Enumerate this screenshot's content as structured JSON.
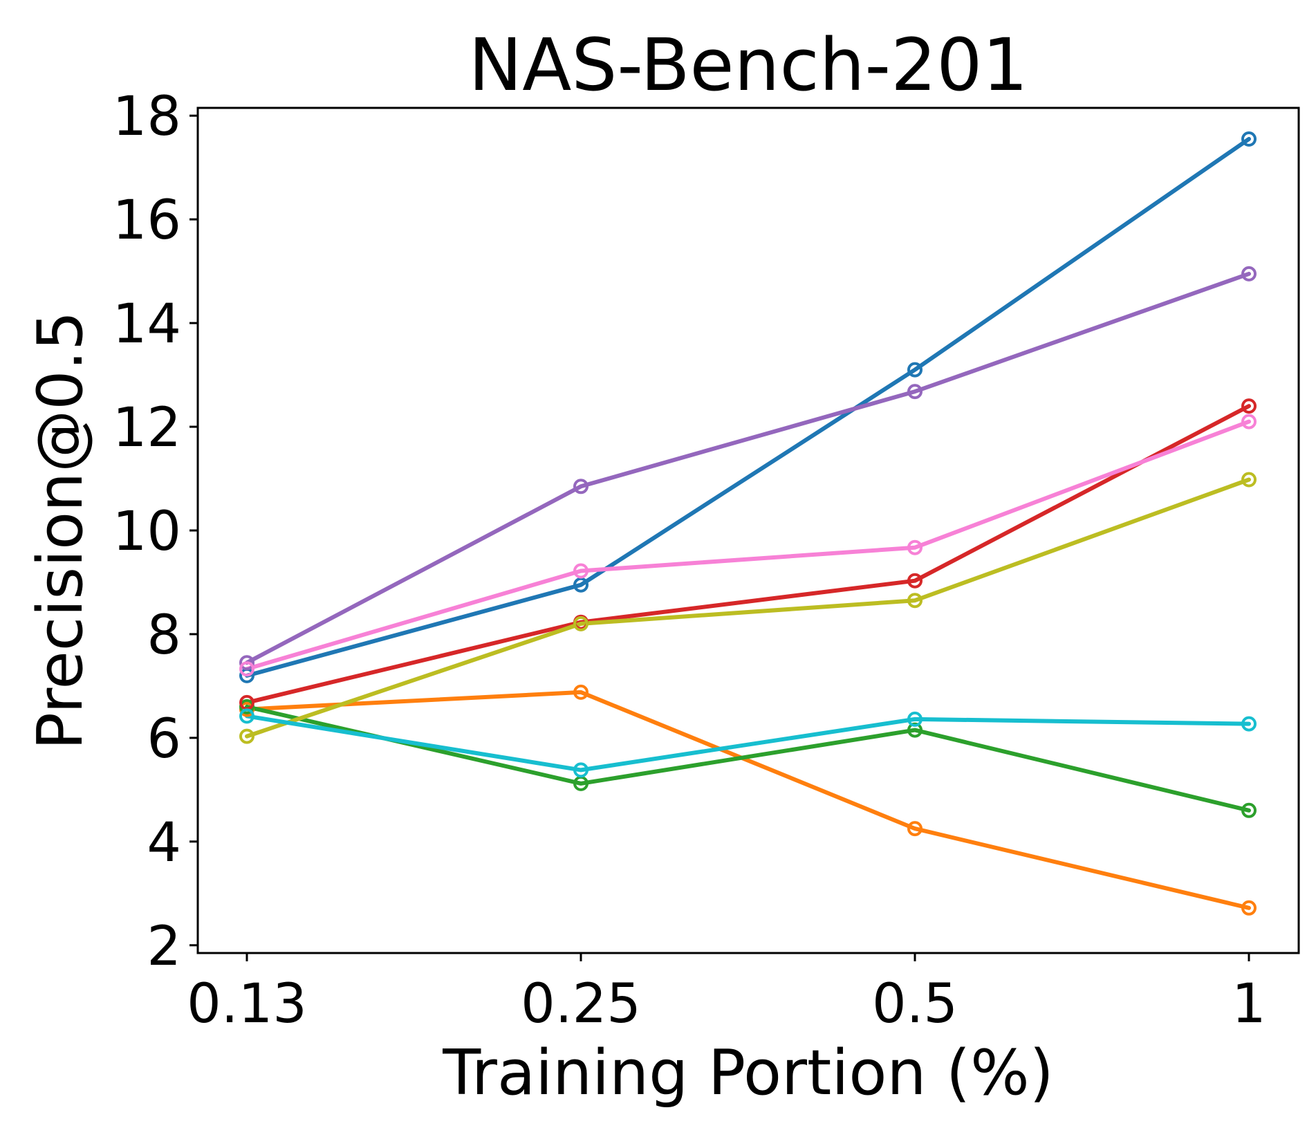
{
  "chart_data": {
    "type": "line",
    "title": "NAS-Bench-201",
    "xlabel": "Training Portion (%)",
    "ylabel": "Precision@0.5",
    "categories": [
      "0.13",
      "0.25",
      "0.5",
      "1"
    ],
    "yticks": [
      "2",
      "4",
      "6",
      "8",
      "10",
      "12",
      "14",
      "16",
      "18"
    ],
    "ylim": [
      1.85,
      18.15
    ],
    "grid": false,
    "legend": "none",
    "series": [
      {
        "name": "blue",
        "color": "#1f77b4",
        "values": [
          7.2,
          8.95,
          13.1,
          17.55
        ]
      },
      {
        "name": "orange",
        "color": "#ff7f0e",
        "values": [
          6.55,
          6.88,
          4.25,
          2.72
        ]
      },
      {
        "name": "green",
        "color": "#2ca02c",
        "values": [
          6.6,
          5.12,
          6.15,
          4.6
        ]
      },
      {
        "name": "red",
        "color": "#d62728",
        "values": [
          6.68,
          8.23,
          9.03,
          12.4
        ]
      },
      {
        "name": "purple",
        "color": "#9467bd",
        "values": [
          7.45,
          10.85,
          12.68,
          14.95
        ]
      },
      {
        "name": "pink",
        "color": "#f781d6",
        "values": [
          7.33,
          9.22,
          9.67,
          12.1
        ]
      },
      {
        "name": "olive",
        "color": "#bcbd22",
        "values": [
          6.03,
          8.2,
          8.65,
          10.98
        ]
      },
      {
        "name": "cyan",
        "color": "#17becf",
        "values": [
          6.42,
          5.38,
          6.36,
          6.27
        ]
      }
    ]
  }
}
